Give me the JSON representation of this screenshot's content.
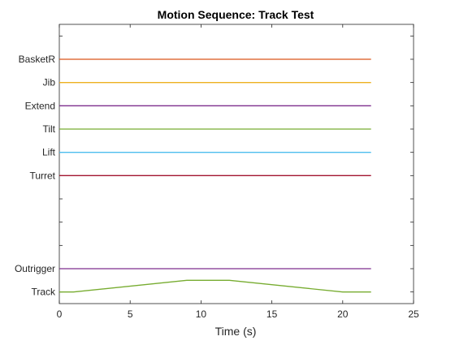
{
  "chart_data": {
    "type": "line",
    "title": "Motion Sequence: Track Test",
    "xlabel": "Time (s)",
    "ylabel": "",
    "xlim": [
      0,
      25
    ],
    "xticks": [
      0,
      5,
      10,
      15,
      20,
      25
    ],
    "ylim": [
      0.5,
      12.5
    ],
    "grid": false,
    "yticks": [
      1,
      2,
      3,
      4,
      5,
      6,
      7,
      8,
      9,
      10,
      11,
      12
    ],
    "ytick_labels": [
      "Track",
      "Outrigger",
      "",
      "",
      "",
      "Turret",
      "Lift",
      "Tilt",
      "Extend",
      "Jib",
      "BasketR",
      ""
    ],
    "series": [
      {
        "name": "Track",
        "color": "#77ac30",
        "x": [
          0,
          1,
          9,
          12,
          20,
          22
        ],
        "y": [
          1,
          1,
          1.5,
          1.5,
          1,
          1
        ]
      },
      {
        "name": "Outrigger",
        "color": "#7e2f8e",
        "x": [
          0,
          22
        ],
        "y": [
          2,
          2
        ]
      },
      {
        "name": "Turret",
        "color": "#a2142f",
        "x": [
          0,
          22
        ],
        "y": [
          6,
          6
        ]
      },
      {
        "name": "Lift",
        "color": "#4dbeee",
        "x": [
          0,
          22
        ],
        "y": [
          7,
          7
        ]
      },
      {
        "name": "Tilt",
        "color": "#77ac30",
        "x": [
          0,
          22
        ],
        "y": [
          8,
          8
        ]
      },
      {
        "name": "Extend",
        "color": "#7e2f8e",
        "x": [
          0,
          22
        ],
        "y": [
          9,
          9
        ]
      },
      {
        "name": "Jib",
        "color": "#edb120",
        "x": [
          0,
          22
        ],
        "y": [
          10,
          10
        ]
      },
      {
        "name": "BasketR",
        "color": "#d95319",
        "x": [
          0,
          22
        ],
        "y": [
          11,
          11
        ]
      }
    ]
  }
}
